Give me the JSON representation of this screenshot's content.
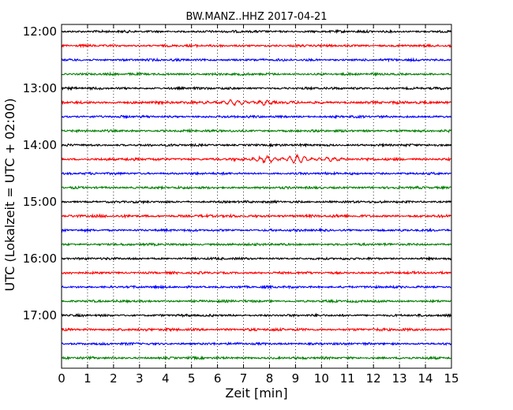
{
  "chart_data": {
    "type": "line",
    "title": "BW.MANZ..HHZ 2017-04-21",
    "xlabel": "Zeit  [min]",
    "ylabel": "UTC (Lokalzeit = UTC + 02:00)",
    "xlim": [
      0,
      15
    ],
    "x_ticks": [
      "0",
      "1",
      "2",
      "3",
      "4",
      "5",
      "6",
      "7",
      "8",
      "9",
      "10",
      "11",
      "12",
      "13",
      "14",
      "15"
    ],
    "y_ticks": [
      "12:00",
      "13:00",
      "14:00",
      "15:00",
      "16:00",
      "17:00"
    ],
    "grid": "vertical-dotted",
    "row_colors": [
      "#000000",
      "#ff0000",
      "#0000ff",
      "#008000"
    ],
    "traces": [
      {
        "start": "12:00",
        "amplitude": 0.35,
        "events": []
      },
      {
        "start": "12:15",
        "amplitude": 0.35,
        "events": []
      },
      {
        "start": "12:30",
        "amplitude": 0.35,
        "events": []
      },
      {
        "start": "12:45",
        "amplitude": 0.35,
        "events": []
      },
      {
        "start": "13:00",
        "amplitude": 0.35,
        "events": []
      },
      {
        "start": "13:15",
        "amplitude": 0.4,
        "events": [
          {
            "from": 5.0,
            "to": 8.6,
            "amplitude": 1.0
          }
        ]
      },
      {
        "start": "13:30",
        "amplitude": 0.35,
        "events": []
      },
      {
        "start": "13:45",
        "amplitude": 0.35,
        "events": []
      },
      {
        "start": "14:00",
        "amplitude": 0.35,
        "events": []
      },
      {
        "start": "14:15",
        "amplitude": 0.4,
        "events": [
          {
            "from": 6.5,
            "to": 11.0,
            "amplitude": 1.5
          }
        ]
      },
      {
        "start": "14:30",
        "amplitude": 0.35,
        "events": []
      },
      {
        "start": "14:45",
        "amplitude": 0.35,
        "events": []
      },
      {
        "start": "15:00",
        "amplitude": 0.35,
        "events": []
      },
      {
        "start": "15:15",
        "amplitude": 0.4,
        "events": []
      },
      {
        "start": "15:30",
        "amplitude": 0.35,
        "events": []
      },
      {
        "start": "15:45",
        "amplitude": 0.35,
        "events": []
      },
      {
        "start": "16:00",
        "amplitude": 0.35,
        "events": []
      },
      {
        "start": "16:15",
        "amplitude": 0.35,
        "events": []
      },
      {
        "start": "16:30",
        "amplitude": 0.35,
        "events": []
      },
      {
        "start": "16:45",
        "amplitude": 0.35,
        "events": []
      },
      {
        "start": "17:00",
        "amplitude": 0.35,
        "events": []
      },
      {
        "start": "17:15",
        "amplitude": 0.4,
        "events": []
      },
      {
        "start": "17:30",
        "amplitude": 0.35,
        "events": []
      },
      {
        "start": "17:45",
        "amplitude": 0.35,
        "events": []
      }
    ]
  }
}
